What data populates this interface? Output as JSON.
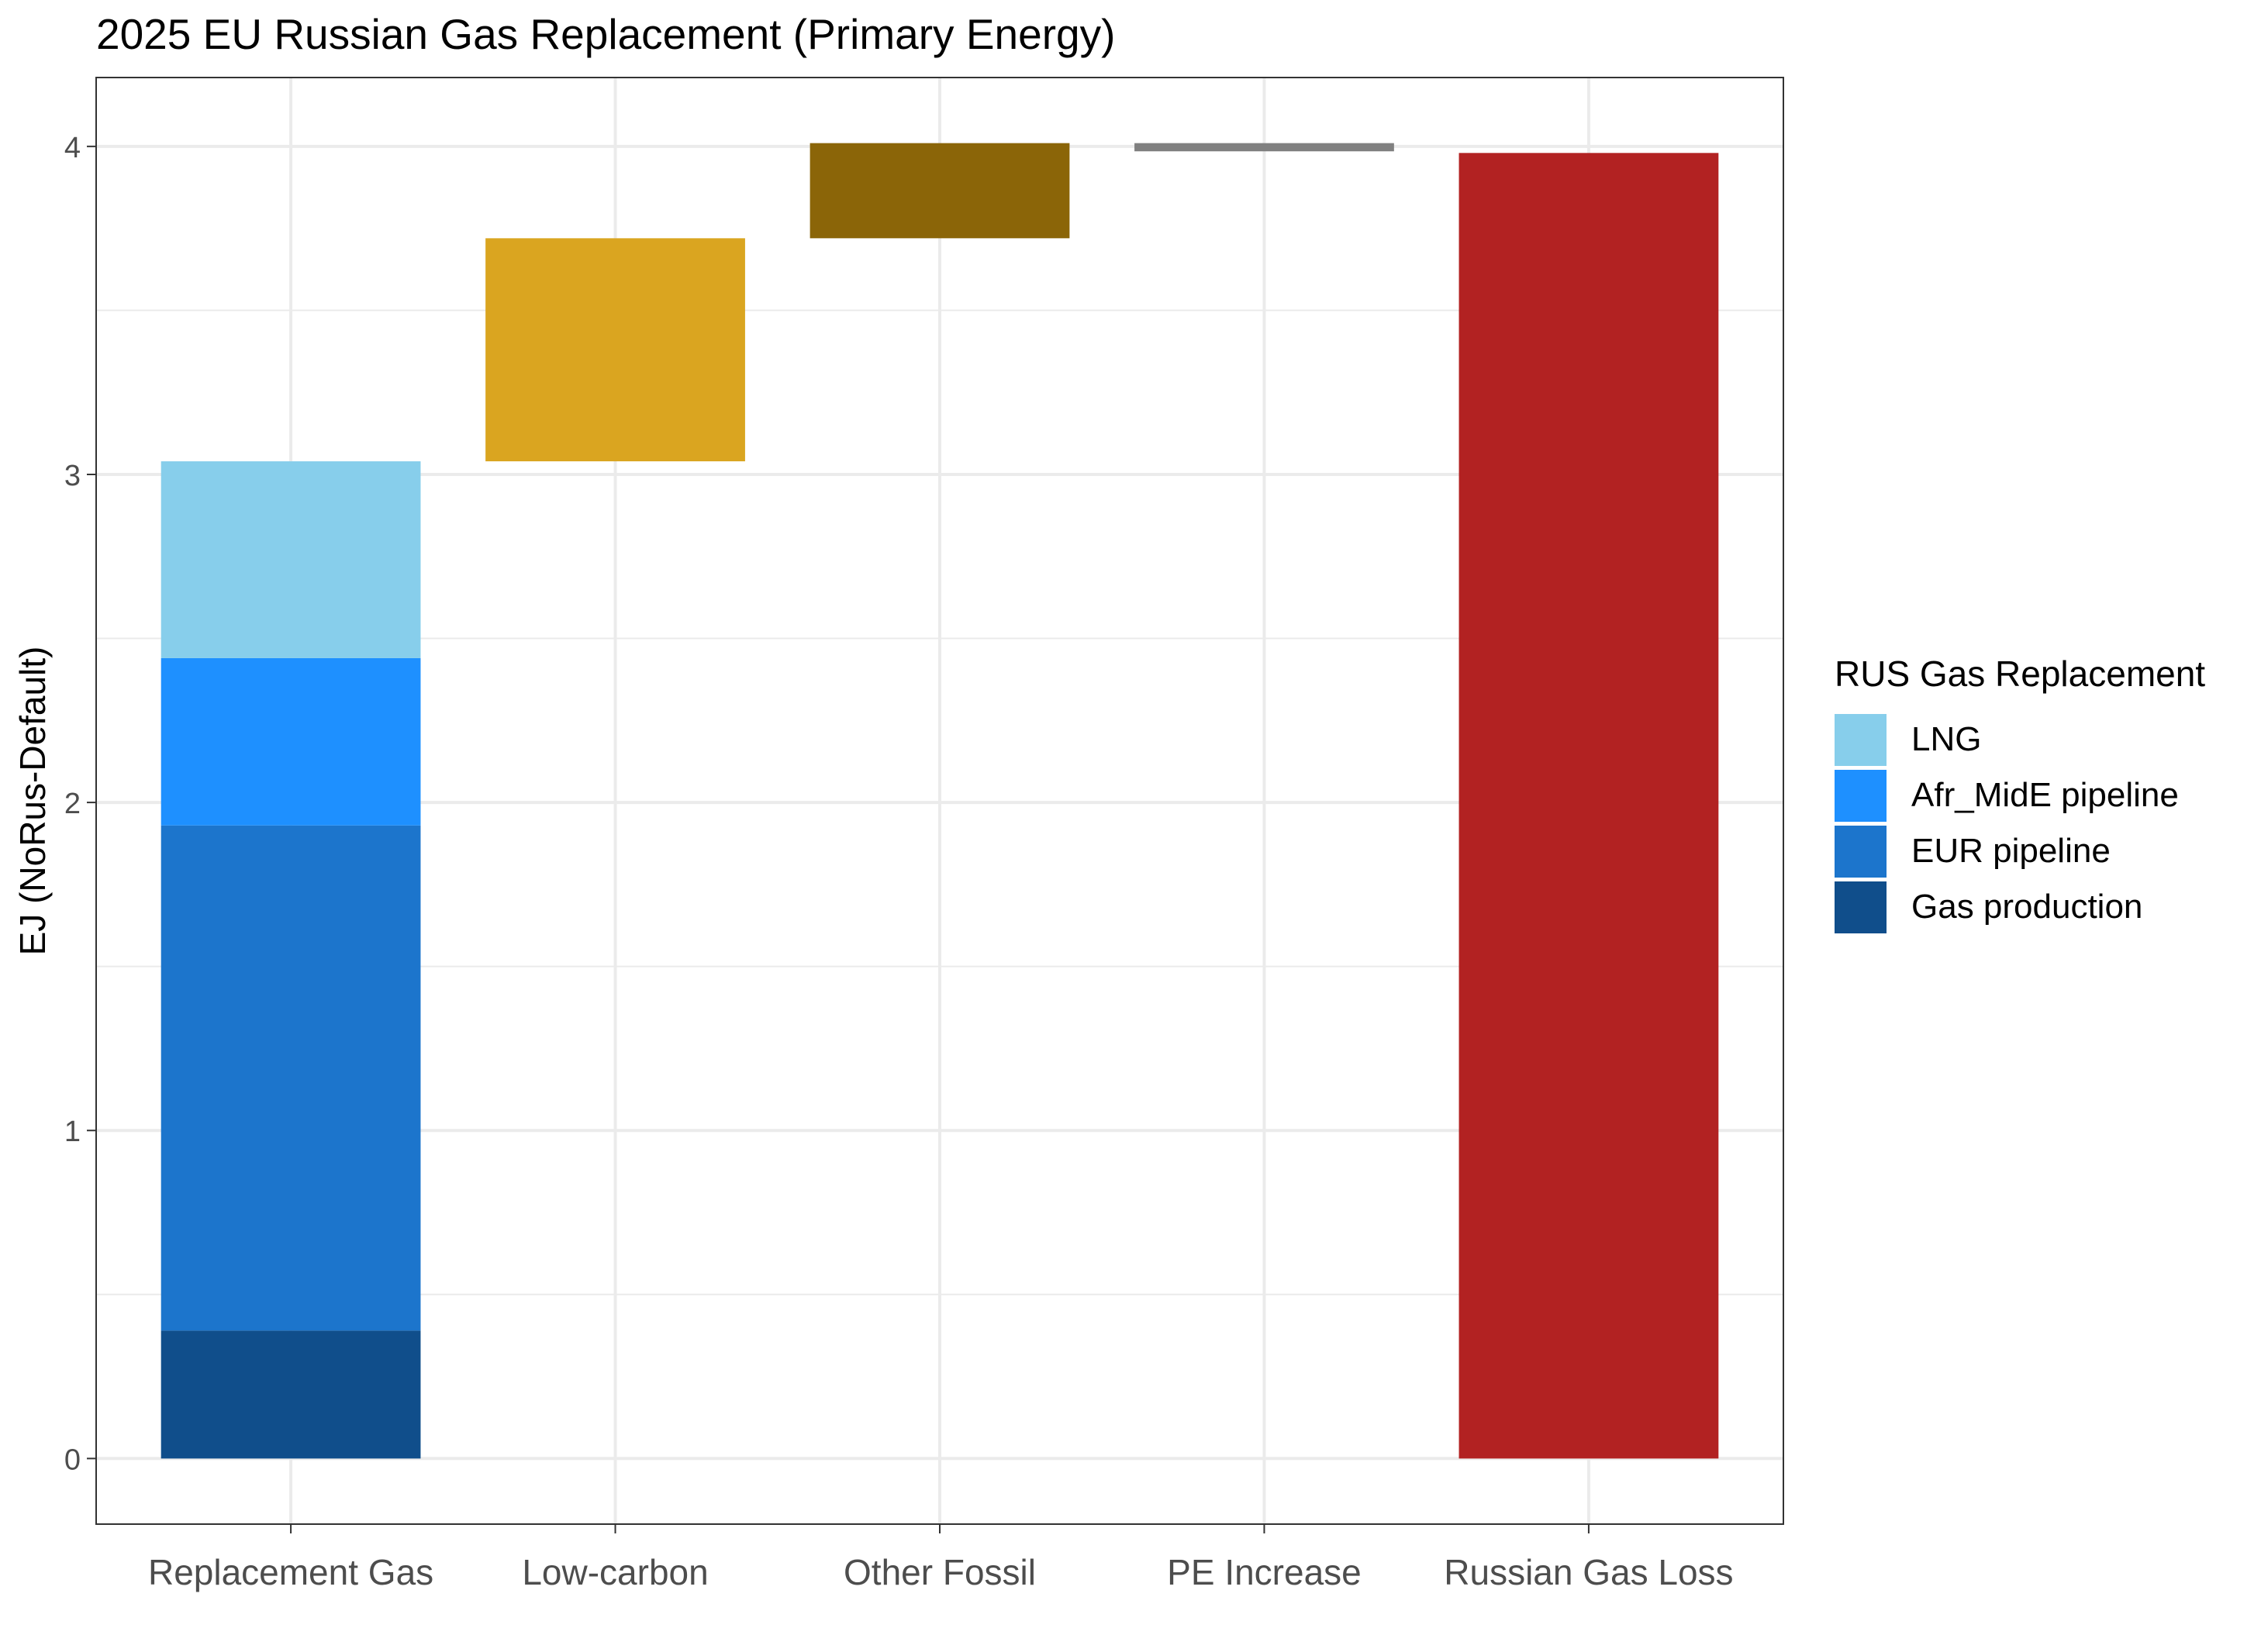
{
  "chart_data": {
    "type": "bar",
    "subtype": "waterfall",
    "title": "2025 EU Russian Gas Replacement (Primary Energy)",
    "xlabel": "",
    "ylabel": "EJ (NoRus-Default)",
    "ylim": [
      -0.2,
      4.21
    ],
    "y_ticks": [
      0,
      1,
      2,
      3,
      4
    ],
    "grid": true,
    "categories": [
      "Replacement Gas",
      "Low-carbon",
      "Other Fossil",
      "PE Increase",
      "Russian Gas Loss"
    ],
    "stacked_series": [
      {
        "name": "Gas production",
        "category": "Replacement Gas",
        "value": 0.39,
        "color": "#104E8B"
      },
      {
        "name": "EUR pipeline",
        "category": "Replacement Gas",
        "value": 1.54,
        "color": "#1C75CC"
      },
      {
        "name": "Afr_MidE pipeline",
        "category": "Replacement Gas",
        "value": 0.51,
        "color": "#1E90FF"
      },
      {
        "name": "LNG",
        "category": "Replacement Gas",
        "value": 0.6,
        "color": "#87CEEB"
      }
    ],
    "waterfall_steps": [
      {
        "category": "Low-carbon",
        "start": 3.04,
        "end": 3.72,
        "color": "#DAA520"
      },
      {
        "category": "Other Fossil",
        "start": 3.72,
        "end": 4.01,
        "color": "#8B6508"
      },
      {
        "category": "PE Increase",
        "start": 3.985,
        "end": 4.01,
        "color": "#808080"
      }
    ],
    "total_bar": {
      "category": "Russian Gas Loss",
      "value": 3.98,
      "color": "#B22222"
    },
    "legend": {
      "title": "RUS Gas Replacement",
      "position": "right",
      "items": [
        {
          "label": "LNG",
          "color": "#87CEEB"
        },
        {
          "label": "Afr_MidE pipeline",
          "color": "#1E90FF"
        },
        {
          "label": "EUR pipeline",
          "color": "#1C75CC"
        },
        {
          "label": "Gas production",
          "color": "#104E8B"
        }
      ]
    }
  }
}
